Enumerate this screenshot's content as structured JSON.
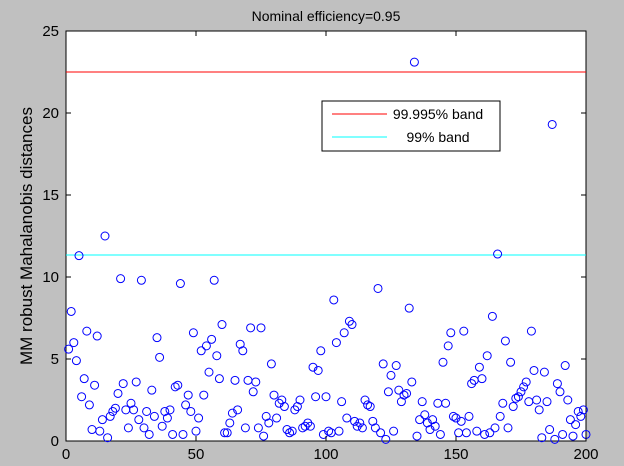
{
  "chart_data": {
    "type": "scatter",
    "title": "Nominal efficiency=0.95",
    "xlabel": "",
    "ylabel": "MM robust Mahalanobis distances",
    "xlim": [
      0,
      200
    ],
    "ylim": [
      0,
      25
    ],
    "xticks": [
      0,
      50,
      100,
      150,
      200
    ],
    "yticks": [
      0,
      5,
      10,
      15,
      20,
      25
    ],
    "grid": false,
    "legend_position": "upper-right",
    "marker_color": "#0000ff",
    "marker": "o",
    "points": [
      [
        1,
        5.6
      ],
      [
        2,
        7.9
      ],
      [
        3,
        6.0
      ],
      [
        4,
        4.9
      ],
      [
        5,
        11.3
      ],
      [
        6,
        2.7
      ],
      [
        7,
        3.8
      ],
      [
        8,
        6.7
      ],
      [
        9,
        2.2
      ],
      [
        10,
        0.7
      ],
      [
        11,
        3.4
      ],
      [
        12,
        6.4
      ],
      [
        13,
        0.6
      ],
      [
        14,
        1.3
      ],
      [
        15,
        12.5
      ],
      [
        16,
        0.2
      ],
      [
        17,
        1.5
      ],
      [
        18,
        1.8
      ],
      [
        19,
        2.0
      ],
      [
        20,
        2.9
      ],
      [
        21,
        9.9
      ],
      [
        22,
        3.5
      ],
      [
        23,
        1.9
      ],
      [
        24,
        0.8
      ],
      [
        25,
        2.3
      ],
      [
        26,
        1.9
      ],
      [
        27,
        3.6
      ],
      [
        28,
        1.3
      ],
      [
        29,
        9.8
      ],
      [
        30,
        0.8
      ],
      [
        31,
        1.8
      ],
      [
        32,
        0.4
      ],
      [
        33,
        3.1
      ],
      [
        34,
        1.5
      ],
      [
        35,
        6.3
      ],
      [
        36,
        5.1
      ],
      [
        37,
        0.9
      ],
      [
        38,
        1.8
      ],
      [
        39,
        1.4
      ],
      [
        40,
        1.9
      ],
      [
        41,
        0.4
      ],
      [
        42,
        3.3
      ],
      [
        43,
        3.4
      ],
      [
        44,
        9.6
      ],
      [
        45,
        0.4
      ],
      [
        46,
        2.2
      ],
      [
        47,
        2.8
      ],
      [
        48,
        1.8
      ],
      [
        49,
        6.6
      ],
      [
        50,
        0.6
      ],
      [
        51,
        1.4
      ],
      [
        52,
        5.5
      ],
      [
        53,
        2.8
      ],
      [
        54,
        5.8
      ],
      [
        55,
        4.2
      ],
      [
        56,
        6.2
      ],
      [
        57,
        9.8
      ],
      [
        58,
        5.2
      ],
      [
        59,
        3.8
      ],
      [
        60,
        7.1
      ],
      [
        61,
        0.5
      ],
      [
        62,
        0.5
      ],
      [
        63,
        1.1
      ],
      [
        64,
        1.7
      ],
      [
        65,
        3.7
      ],
      [
        66,
        1.9
      ],
      [
        67,
        5.9
      ],
      [
        68,
        5.5
      ],
      [
        69,
        0.8
      ],
      [
        70,
        3.7
      ],
      [
        71,
        6.9
      ],
      [
        72,
        3.0
      ],
      [
        73,
        3.6
      ],
      [
        74,
        0.8
      ],
      [
        75,
        6.9
      ],
      [
        76,
        0.3
      ],
      [
        77,
        1.5
      ],
      [
        78,
        1.1
      ],
      [
        79,
        4.7
      ],
      [
        80,
        2.8
      ],
      [
        81,
        1.4
      ],
      [
        82,
        2.3
      ],
      [
        83,
        2.5
      ],
      [
        84,
        2.1
      ],
      [
        85,
        0.7
      ],
      [
        86,
        0.5
      ],
      [
        87,
        0.6
      ],
      [
        88,
        1.9
      ],
      [
        89,
        2.1
      ],
      [
        90,
        2.5
      ],
      [
        91,
        0.8
      ],
      [
        92,
        0.9
      ],
      [
        93,
        1.1
      ],
      [
        94,
        0.9
      ],
      [
        95,
        4.5
      ],
      [
        96,
        2.7
      ],
      [
        97,
        4.3
      ],
      [
        98,
        5.5
      ],
      [
        99,
        0.4
      ],
      [
        100,
        2.7
      ],
      [
        101,
        0.6
      ],
      [
        102,
        0.5
      ],
      [
        103,
        8.6
      ],
      [
        104,
        6.0
      ],
      [
        105,
        0.6
      ],
      [
        106,
        2.4
      ],
      [
        107,
        6.6
      ],
      [
        108,
        1.4
      ],
      [
        109,
        7.3
      ],
      [
        110,
        7.1
      ],
      [
        111,
        1.2
      ],
      [
        112,
        0.9
      ],
      [
        113,
        1.1
      ],
      [
        114,
        0.8
      ],
      [
        115,
        2.5
      ],
      [
        116,
        2.2
      ],
      [
        117,
        2.1
      ],
      [
        118,
        1.2
      ],
      [
        119,
        0.8
      ],
      [
        120,
        9.3
      ],
      [
        121,
        0.5
      ],
      [
        122,
        4.7
      ],
      [
        123,
        0.1
      ],
      [
        124,
        3.0
      ],
      [
        125,
        4.0
      ],
      [
        126,
        0.6
      ],
      [
        127,
        4.6
      ],
      [
        128,
        3.1
      ],
      [
        129,
        2.4
      ],
      [
        130,
        2.8
      ],
      [
        131,
        2.9
      ],
      [
        132,
        8.1
      ],
      [
        133,
        3.6
      ],
      [
        134,
        23.1
      ],
      [
        135,
        0.3
      ],
      [
        136,
        1.3
      ],
      [
        137,
        2.4
      ],
      [
        138,
        1.6
      ],
      [
        139,
        1.1
      ],
      [
        140,
        0.7
      ],
      [
        141,
        1.3
      ],
      [
        142,
        0.9
      ],
      [
        143,
        2.3
      ],
      [
        144,
        0.4
      ],
      [
        145,
        4.8
      ],
      [
        146,
        2.3
      ],
      [
        147,
        5.8
      ],
      [
        148,
        6.6
      ],
      [
        149,
        1.5
      ],
      [
        150,
        1.4
      ],
      [
        151,
        0.5
      ],
      [
        152,
        1.2
      ],
      [
        153,
        6.7
      ],
      [
        154,
        0.5
      ],
      [
        155,
        1.5
      ],
      [
        156,
        3.5
      ],
      [
        157,
        3.7
      ],
      [
        158,
        0.6
      ],
      [
        159,
        4.5
      ],
      [
        160,
        3.8
      ],
      [
        161,
        0.4
      ],
      [
        162,
        5.2
      ],
      [
        163,
        0.5
      ],
      [
        164,
        7.6
      ],
      [
        165,
        0.8
      ],
      [
        166,
        11.4
      ],
      [
        167,
        1.5
      ],
      [
        168,
        2.3
      ],
      [
        169,
        6.1
      ],
      [
        170,
        0.8
      ],
      [
        171,
        4.8
      ],
      [
        172,
        2.1
      ],
      [
        173,
        2.6
      ],
      [
        174,
        2.7
      ],
      [
        175,
        3.0
      ],
      [
        176,
        3.3
      ],
      [
        177,
        3.6
      ],
      [
        178,
        2.4
      ],
      [
        179,
        6.7
      ],
      [
        180,
        4.3
      ],
      [
        181,
        2.5
      ],
      [
        182,
        1.9
      ],
      [
        183,
        0.2
      ],
      [
        184,
        4.2
      ],
      [
        185,
        2.4
      ],
      [
        186,
        0.7
      ],
      [
        187,
        19.3
      ],
      [
        188,
        0.1
      ],
      [
        189,
        3.5
      ],
      [
        190,
        3.0
      ],
      [
        191,
        0.4
      ],
      [
        192,
        4.6
      ],
      [
        193,
        2.5
      ],
      [
        194,
        1.3
      ],
      [
        195,
        0.3
      ],
      [
        196,
        1.0
      ],
      [
        197,
        1.8
      ],
      [
        198,
        1.5
      ],
      [
        199,
        1.9
      ],
      [
        200,
        0.4
      ]
    ],
    "reference_lines": [
      {
        "name": "99.995% band",
        "y": 22.5,
        "color": "#ff0000"
      },
      {
        "name": "99% band",
        "y": 11.34,
        "color": "#00ffff"
      }
    ]
  }
}
